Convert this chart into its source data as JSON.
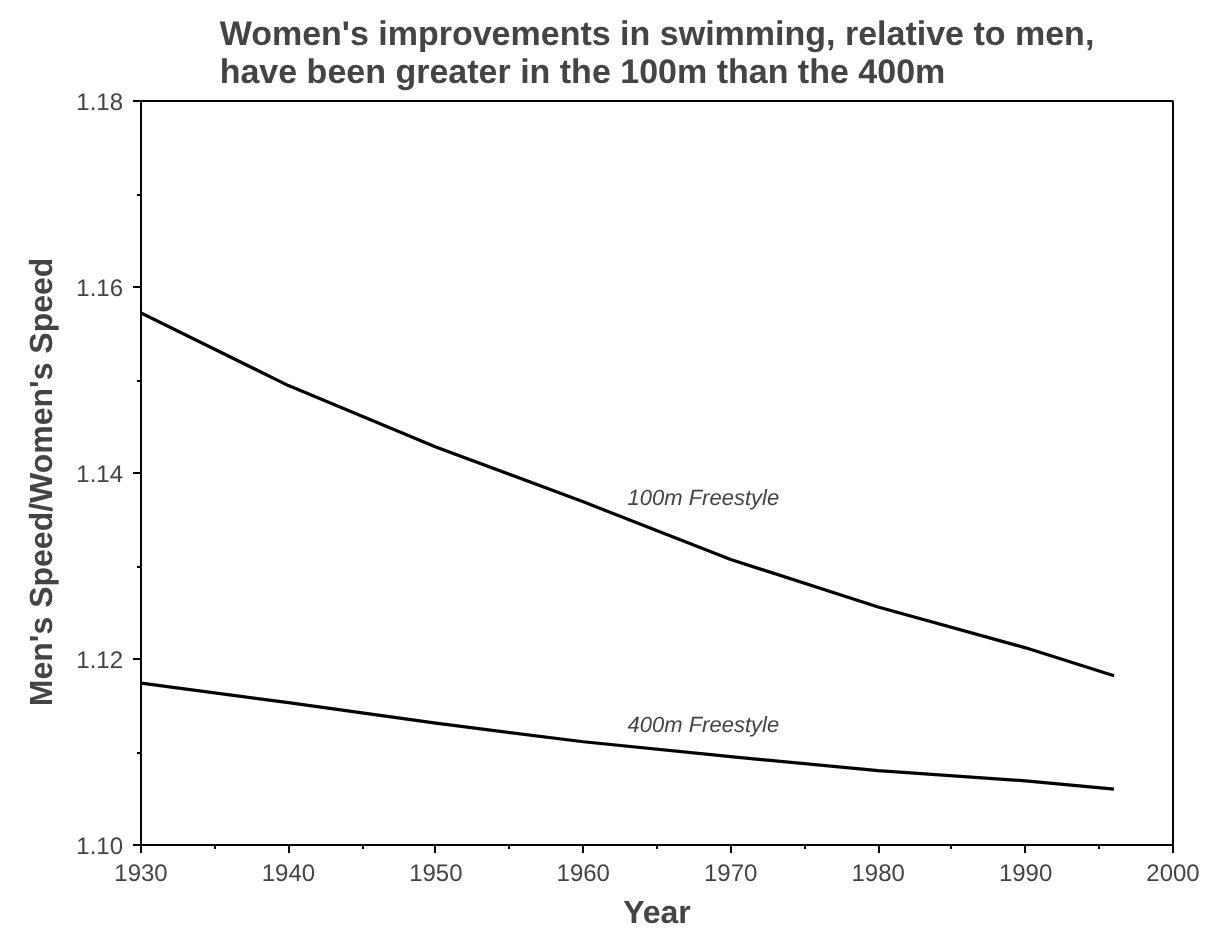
{
  "chart_data": {
    "type": "line",
    "title": "Women's improvements in swimming, relative to men,\nhave been greater in the 100m than the 400m",
    "xlabel": "Year",
    "ylabel": "Men's  Speed/Women's  Speed",
    "x": [
      1930,
      1940,
      1950,
      1960,
      1970,
      1980,
      1990,
      1996
    ],
    "series": [
      {
        "name": "100m Freestyle",
        "color": "#000000",
        "values": [
          1.1572,
          1.1494,
          1.1428,
          1.1369,
          1.1307,
          1.1256,
          1.1212,
          1.1182
        ]
      },
      {
        "name": "400m Freestyle",
        "color": "#000000",
        "values": [
          1.1174,
          1.1153,
          1.1131,
          1.1111,
          1.1095,
          1.108,
          1.1069,
          1.106
        ]
      }
    ],
    "xlim": [
      1930,
      2000
    ],
    "xticks": [
      1930,
      1940,
      1950,
      1960,
      1970,
      1980,
      1990,
      2000
    ],
    "ylim": [
      1.1,
      1.18
    ],
    "yticks": [
      {
        "value": 1.1,
        "label": "1.10"
      },
      {
        "value": 1.12,
        "label": "1.12"
      },
      {
        "value": 1.14,
        "label": "1.14"
      },
      {
        "value": 1.16,
        "label": "1.16"
      },
      {
        "value": 1.18,
        "label": "1.18"
      }
    ],
    "grid": false,
    "legend": false,
    "line_style": "solid",
    "marker": "none"
  }
}
